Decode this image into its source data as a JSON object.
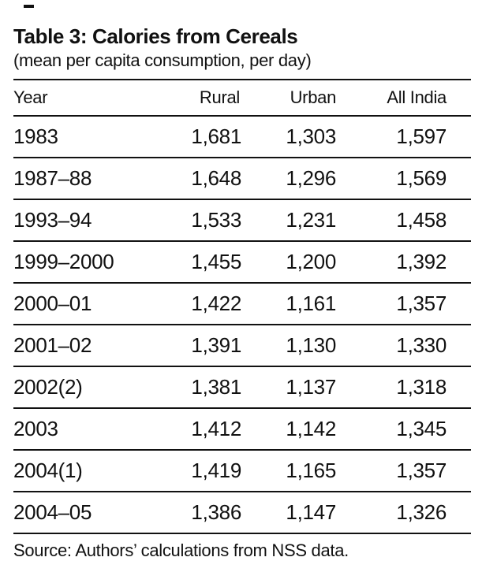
{
  "page": {
    "title": "Table 3: Calories from Cereals",
    "subtitle": "(mean per capita consumption, per day)",
    "source": "Source: Authors’ calculations from NSS data."
  },
  "table": {
    "columns": [
      "Year",
      "Rural",
      "Urban",
      "All India"
    ],
    "rows": [
      {
        "year": "1983",
        "rural": "1,681",
        "urban": "1,303",
        "all_india": "1,597"
      },
      {
        "year": "1987–88",
        "rural": "1,648",
        "urban": "1,296",
        "all_india": "1,569"
      },
      {
        "year": "1993–94",
        "rural": "1,533",
        "urban": "1,231",
        "all_india": "1,458"
      },
      {
        "year": "1999–2000",
        "rural": "1,455",
        "urban": "1,200",
        "all_india": "1,392"
      },
      {
        "year": "2000–01",
        "rural": "1,422",
        "urban": "1,161",
        "all_india": "1,357"
      },
      {
        "year": "2001–02",
        "rural": "1,391",
        "urban": "1,130",
        "all_india": "1,330"
      },
      {
        "year": "2002(2)",
        "rural": "1,381",
        "urban": "1,137",
        "all_india": "1,318"
      },
      {
        "year": "2003",
        "rural": "1,412",
        "urban": "1,142",
        "all_india": "1,345"
      },
      {
        "year": "2004(1)",
        "rural": "1,419",
        "urban": "1,165",
        "all_india": "1,357"
      },
      {
        "year": "2004–05",
        "rural": "1,386",
        "urban": "1,147",
        "all_india": "1,326"
      }
    ]
  },
  "chart_data": {
    "type": "table",
    "title": "Table 3: Calories from Cereals",
    "subtitle": "(mean per capita consumption, per day)",
    "categories": [
      "1983",
      "1987–88",
      "1993–94",
      "1999–2000",
      "2000–01",
      "2001–02",
      "2002(2)",
      "2003",
      "2004(1)",
      "2004–05"
    ],
    "series": [
      {
        "name": "Rural",
        "values": [
          1681,
          1648,
          1533,
          1455,
          1422,
          1391,
          1381,
          1412,
          1419,
          1386
        ]
      },
      {
        "name": "Urban",
        "values": [
          1303,
          1296,
          1231,
          1200,
          1161,
          1130,
          1137,
          1142,
          1165,
          1147
        ]
      },
      {
        "name": "All India",
        "values": [
          1597,
          1569,
          1458,
          1392,
          1357,
          1330,
          1318,
          1345,
          1357,
          1326
        ]
      }
    ],
    "source": "Source: Authors’ calculations from NSS data."
  }
}
